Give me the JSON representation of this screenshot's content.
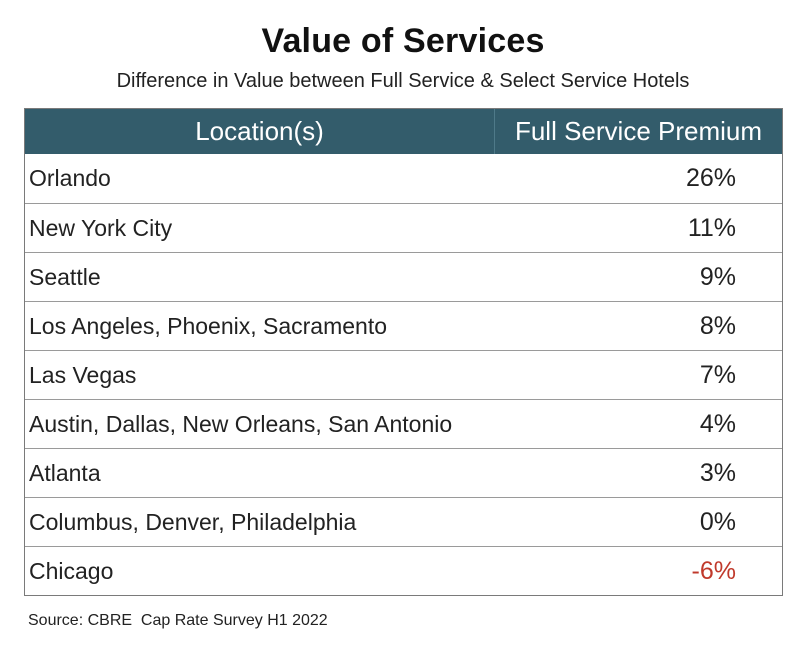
{
  "title": "Value of Services",
  "subtitle": "Difference in Value between Full Service & Select Service Hotels",
  "source": "Source: CBRE  Cap Rate Survey H1 2022",
  "colors": {
    "header_bg": "#335c6b",
    "header_text": "#ffffff",
    "negative_value": "#c0392b"
  },
  "chart_data": {
    "type": "table",
    "title": "Value of Services",
    "subtitle": "Difference in Value between Full Service & Select Service Hotels",
    "columns": [
      "Location(s)",
      "Full Service Premium"
    ],
    "rows": [
      {
        "location": "Orlando",
        "premium": "26%",
        "value": 26
      },
      {
        "location": "New York City",
        "premium": "11%",
        "value": 11
      },
      {
        "location": "Seattle",
        "premium": "9%",
        "value": 9
      },
      {
        "location": "Los Angeles, Phoenix, Sacramento",
        "premium": "8%",
        "value": 8
      },
      {
        "location": "Las Vegas",
        "premium": "7%",
        "value": 7
      },
      {
        "location": "Austin, Dallas, New Orleans, San Antonio",
        "premium": "4%",
        "value": 4
      },
      {
        "location": "Atlanta",
        "premium": "3%",
        "value": 3
      },
      {
        "location": "Columbus, Denver, Philadelphia",
        "premium": "0%",
        "value": 0
      },
      {
        "location": "Chicago",
        "premium": "-6%",
        "value": -6
      }
    ],
    "source": "Source: CBRE  Cap Rate Survey H1 2022"
  }
}
